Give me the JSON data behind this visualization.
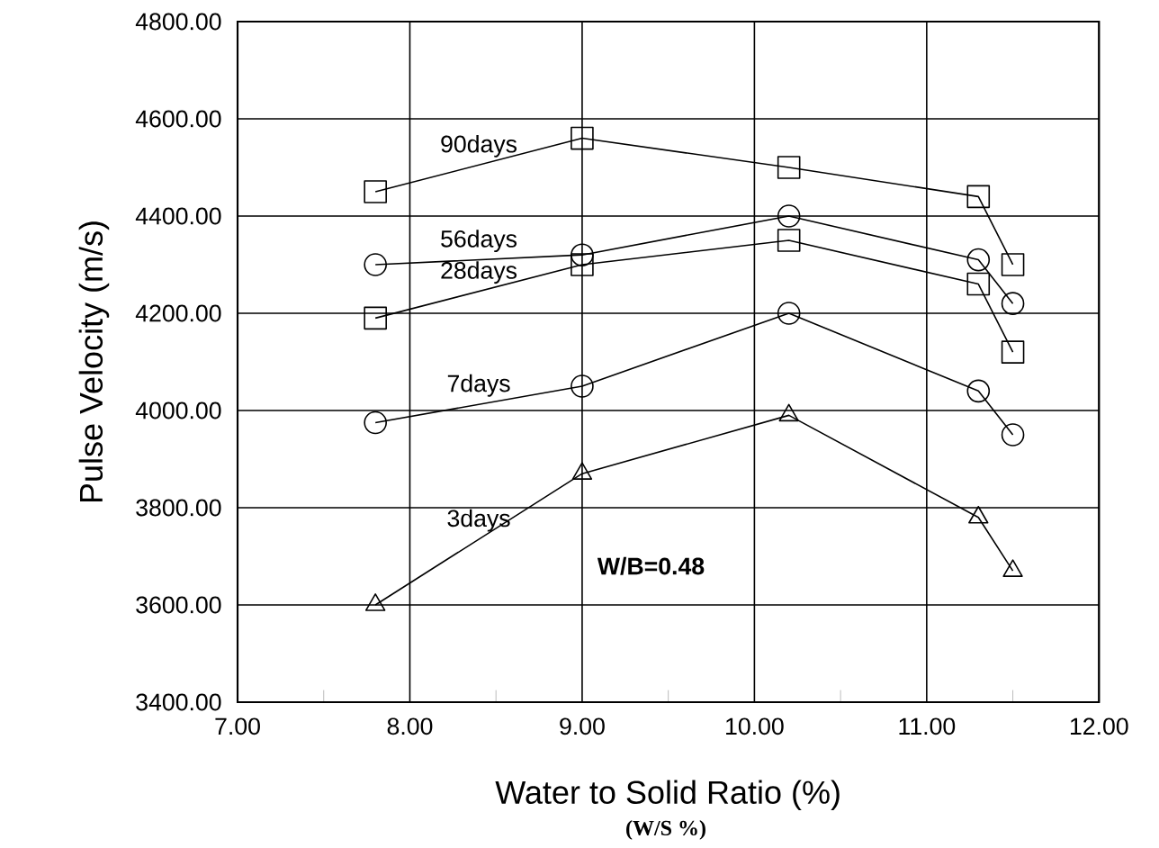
{
  "chart_data": {
    "type": "line",
    "xlabel": "Water to Solid Ratio (%)",
    "ylabel": "Pulse Velocity (m/s)",
    "annotations": [
      "W/B=0.48",
      "(W/S %)"
    ],
    "x": [
      7.8,
      9.0,
      10.2,
      11.3,
      11.5
    ],
    "series": [
      {
        "name": "90days",
        "color": "#000000",
        "marker": "square",
        "values": [
          4450,
          4560,
          4500,
          4440,
          4300
        ]
      },
      {
        "name": "56days",
        "color": "#000000",
        "marker": "circle",
        "values": [
          4300,
          4320,
          4400,
          4310,
          4220
        ]
      },
      {
        "name": "28days",
        "color": "#000000",
        "marker": "square",
        "values": [
          4190,
          4300,
          4350,
          4260,
          4120
        ]
      },
      {
        "name": "7days",
        "color": "#000000",
        "marker": "circle",
        "values": [
          3975,
          4050,
          4200,
          4040,
          3950
        ]
      },
      {
        "name": "3days",
        "color": "#000000",
        "marker": "triangle",
        "values": [
          3600,
          3870,
          3990,
          3780,
          3670
        ]
      }
    ],
    "xlim": [
      7,
      12
    ],
    "xticks": [
      {
        "value": 7,
        "label": "7.00"
      },
      {
        "value": 7.5,
        "label": null
      },
      {
        "value": 8,
        "label": "8.00"
      },
      {
        "value": 8.5,
        "label": null
      },
      {
        "value": 9,
        "label": "9.00"
      },
      {
        "value": 9.5,
        "label": null
      },
      {
        "value": 10,
        "label": "10.00"
      },
      {
        "value": 10.5,
        "label": null
      },
      {
        "value": 11,
        "label": "11.00"
      },
      {
        "value": 11.5,
        "label": null
      },
      {
        "value": 12,
        "label": "12.00"
      }
    ],
    "ylim": [
      3400,
      4800
    ],
    "yticks": [
      {
        "value": 3400,
        "label": "3400.00"
      },
      {
        "value": 3600,
        "label": "3600.00"
      },
      {
        "value": 3800,
        "label": "3800.00"
      },
      {
        "value": 4000,
        "label": "4000.00"
      },
      {
        "value": 4200,
        "label": "4200.00"
      },
      {
        "value": 4400,
        "label": "4400.00"
      },
      {
        "value": 4600,
        "label": "4600.00"
      },
      {
        "value": 4800,
        "label": "4800.00"
      }
    ],
    "grid": true,
    "line_style": "solid"
  }
}
